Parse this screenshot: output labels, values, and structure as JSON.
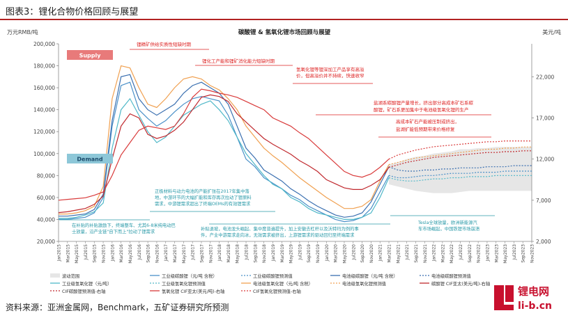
{
  "figure": {
    "label": "图表3：锂化合物价格回顾与展望",
    "source": "资料来源：亚洲金属网，Benchmark，五矿证券研究所预测"
  },
  "logo": {
    "line1": "锂电网",
    "line2": "li-b.cn",
    "color": "#c8102e"
  },
  "chart_data": {
    "type": "line",
    "title": "碳酸锂 & 氢氧化锂市场回顾与展望",
    "ylabel_left": "万元RMB/吨",
    "ylabel_right": "美元/吨",
    "ylim_left": [
      20000,
      200000
    ],
    "ylim_right": [
      2000,
      26000
    ],
    "left_ticks": [
      "20,000",
      "40,000",
      "60,000",
      "80,000",
      "100,000",
      "120,000",
      "140,000",
      "160,000",
      "180,000",
      "200,000"
    ],
    "right_ticks": [
      "2,000",
      "7,000",
      "12,000",
      "17,000",
      "22,000"
    ],
    "right_tick_values": [
      2000,
      7000,
      12000,
      17000,
      22000
    ],
    "x_labels": [
      "Jan2015",
      "Mar2015",
      "May2015",
      "Jul2015",
      "Sep2015",
      "Nov2015",
      "Jan2016",
      "Mar2016",
      "May2016",
      "Jul2016",
      "Sep2016",
      "Nov2016",
      "Jan2017",
      "Mar2017",
      "May2017",
      "Jul2017",
      "Sep2017",
      "Nov2017",
      "Jan2018",
      "Mar2018",
      "May2018",
      "Jul2018",
      "Sep2018",
      "Nov2018",
      "Jan2019",
      "Mar2019",
      "May2019",
      "Jul2019",
      "Sep2019",
      "Nov2019",
      "Jan2020",
      "Mar2020",
      "May2020",
      "Jul2020",
      "Sep2020",
      "Nov2020",
      "Jan2021",
      "Mar2021",
      "May2021",
      "Jul2021",
      "Sep2021",
      "Nov2021",
      "Jan2022",
      "Mar2022",
      "May2022",
      "Jul2022",
      "Sep2022",
      "Nov2022",
      "Jan2023",
      "Mar2023",
      "May2023",
      "Jul2023",
      "Sep2023",
      "Nov2023"
    ],
    "forecast_start_index": 37,
    "band": {
      "name": "波动范围",
      "lower": [
        72000,
        70000,
        68000,
        66000,
        65000,
        64000,
        64000,
        64000,
        65000,
        66000,
        66000,
        66000,
        66000,
        66000,
        66000,
        66000,
        66000
      ],
      "upper": [
        90000,
        92000,
        95000,
        97000,
        98000,
        100000,
        101000,
        102000,
        104000,
        104000,
        105000,
        105000,
        106000,
        106000,
        106000,
        106000,
        106000
      ]
    },
    "series": [
      {
        "name": "工业级碳酸锂（元/吨 含税）",
        "axis": "left",
        "color": "#4a90c8",
        "dash": "",
        "values": [
          40000,
          40000,
          41000,
          42000,
          46000,
          60000,
          125000,
          162000,
          165000,
          140000,
          132000,
          125000,
          130000,
          138000,
          145000,
          150000,
          152000,
          150000,
          148000,
          135000,
          115000,
          95000,
          88000,
          78000,
          73000,
          68000,
          62000,
          58000,
          52000,
          48000,
          44000,
          40000,
          38000,
          39000,
          42000,
          50000,
          65000,
          80000
        ]
      },
      {
        "name": "工业级碳酸锂预测值",
        "axis": "left",
        "color": "#4a90c8",
        "dash": "2,2",
        "values": [
          80000,
          78000,
          78000,
          79000,
          80000,
          80000,
          81000,
          82000,
          82000,
          82000,
          83000,
          83000,
          83000,
          84000,
          84000,
          84000,
          84000
        ]
      },
      {
        "name": "电池级碳酸锂（元/吨 含税）",
        "axis": "left",
        "color": "#3a6fb0",
        "dash": "",
        "values": [
          43000,
          43000,
          44000,
          45000,
          49000,
          63000,
          130000,
          170000,
          172000,
          150000,
          140000,
          135000,
          140000,
          145000,
          155000,
          162000,
          165000,
          160000,
          155000,
          145000,
          125000,
          105000,
          96000,
          85000,
          80000,
          75000,
          68000,
          63000,
          57000,
          52000,
          48000,
          44000,
          42000,
          43000,
          46000,
          56000,
          72000,
          88000
        ]
      },
      {
        "name": "电池级碳酸锂预测值",
        "axis": "left",
        "color": "#3a6fb0",
        "dash": "2,2",
        "values": [
          88000,
          85000,
          84000,
          84000,
          85000,
          85000,
          86000,
          86000,
          87000,
          87000,
          87000,
          88000,
          88000,
          88000,
          89000,
          89000,
          89000
        ]
      },
      {
        "name": "工业级氢氧化锂（元/吨）",
        "axis": "left",
        "color": "#4fb8c8",
        "dash": "",
        "values": [
          41000,
          41000,
          42000,
          44000,
          47000,
          55000,
          105000,
          140000,
          150000,
          135000,
          120000,
          110000,
          115000,
          125000,
          135000,
          140000,
          145000,
          148000,
          140000,
          130000,
          115000,
          100000,
          90000,
          80000,
          72000,
          68000,
          60000,
          56000,
          50000,
          46000,
          44000,
          42000,
          40000,
          40000,
          42000,
          46000,
          60000,
          78000
        ]
      },
      {
        "name": "工业级氢氧化锂预测值",
        "axis": "left",
        "color": "#4fb8c8",
        "dash": "2,2",
        "values": [
          78000,
          76000,
          75000,
          75000,
          76000,
          77000,
          77000,
          78000,
          78000,
          79000,
          79000,
          79000,
          80000,
          80000,
          80000,
          80000,
          80000
        ]
      },
      {
        "name": "电池级氢氧化锂（元/吨 含税）",
        "axis": "left",
        "color": "#f0a050",
        "dash": "",
        "values": [
          45000,
          45000,
          46000,
          48000,
          52000,
          70000,
          150000,
          180000,
          178000,
          160000,
          145000,
          142000,
          150000,
          160000,
          168000,
          170000,
          168000,
          162000,
          158000,
          150000,
          140000,
          125000,
          115000,
          105000,
          98000,
          92000,
          85000,
          78000,
          72000,
          66000,
          60000,
          55000,
          50000,
          50000,
          52000,
          58000,
          75000,
          90000
        ]
      },
      {
        "name": "电池级氢氧化锂预测值",
        "axis": "left",
        "color": "#f0a050",
        "dash": "2,2",
        "values": [
          90000,
          92000,
          94000,
          96000,
          97000,
          98000,
          99000,
          100000,
          101000,
          102000,
          103000,
          104000,
          104000,
          105000,
          105000,
          106000,
          106000
        ]
      },
      {
        "name": "碳酸锂 CIF亚太(美元/吨)-右轴",
        "axis": "right",
        "color": "#c0282d",
        "dash": "",
        "values": [
          5500,
          5600,
          5800,
          6000,
          6500,
          7500,
          12000,
          16000,
          17500,
          17000,
          15000,
          14500,
          14800,
          15500,
          16500,
          18000,
          19500,
          19800,
          19600,
          19000,
          17500,
          16500,
          15500,
          14500,
          13800,
          13200,
          12600,
          11800,
          11200,
          10500,
          9500,
          9000,
          8500,
          8300,
          8300,
          8800,
          9500,
          11000
        ]
      },
      {
        "name": "CIF碳酸锂预测值-右轴",
        "axis": "right",
        "color": "#c0282d",
        "dash": "2,2",
        "values": [
          11000,
          11300,
          11600,
          11800,
          12000,
          12200,
          12300,
          12400,
          12500,
          12600,
          12700,
          12800,
          12800,
          12900,
          12900,
          13000,
          13000
        ]
      },
      {
        "name": "氢氧化锂 CIF亚太(美元/吨)-右轴",
        "axis": "right",
        "color": "#d93a3a",
        "dash": "",
        "values": [
          7000,
          7100,
          7200,
          7300,
          7600,
          8000,
          10000,
          12500,
          14000,
          15500,
          16000,
          15800,
          15600,
          16000,
          17500,
          19500,
          20500,
          20300,
          20000,
          19800,
          19500,
          19000,
          18500,
          18000,
          17000,
          16500,
          16000,
          15200,
          14500,
          13500,
          12500,
          11500,
          10500,
          10000,
          9800,
          10200,
          11000,
          12000
        ]
      },
      {
        "name": "CIF氢氧化锂预测值-右轴",
        "axis": "right",
        "color": "#d93a3a",
        "dash": "2,2",
        "values": [
          12000,
          12500,
          12800,
          13100,
          13300,
          13500,
          13600,
          13700,
          13800,
          13900,
          14000,
          14100,
          14100,
          14200,
          14200,
          14200,
          14200
        ]
      }
    ],
    "annotations": {
      "supply": "Supply",
      "demand": "Demand",
      "a1": "锂精矿供给实质性短缺时期",
      "a2": "锂化工产能和锂矿消化能力短缺时期",
      "a3_1": "氢氧化锂等锂深加工产品享有高溢",
      "a3_2": "价，但高溢价并不持续，快速收窄",
      "a4_1": "盐湖系碳酸锂产量增长，挤出部分高成本矿石系碳",
      "a4_2": "酸锂，矿石系更加集中于电池级氢氧化锂的生产",
      "a5_1": "高成本矿石产能被压制或挤出，",
      "a5_2": "盐湖扩能低预期带来价格修复",
      "a6_1": "正极材料与动力电池的产能扩张在2017年集中落",
      "a6_2": "地，中游环节的大幅扩能和库存再次拉动了锂原料",
      "a6_3": "需求，中游锂需求超出了终端OEMs的有效锂需求",
      "a7_1": "在补贴的补贴激励下，终端整车、尤其6-8米纯电动巴",
      "a7_2": "士放量，沿产业链\"自下而上\"拉动了锂需求",
      "a8_1": "补贴退坡，电池龙头崛起、集中度普遍提升，加上安徽去杠杆以及沃特玛为例的事",
      "a8_2": "件，产业中游需求走向冰，无效需求被挤出，上游锂需求的驱动回归至终端需求",
      "a9_1": "Tesla全球放量，欧洲新能源汽",
      "a9_2": "车市场崛起，中国铁锂市场崩溃"
    },
    "legend_band": "波动范围"
  }
}
